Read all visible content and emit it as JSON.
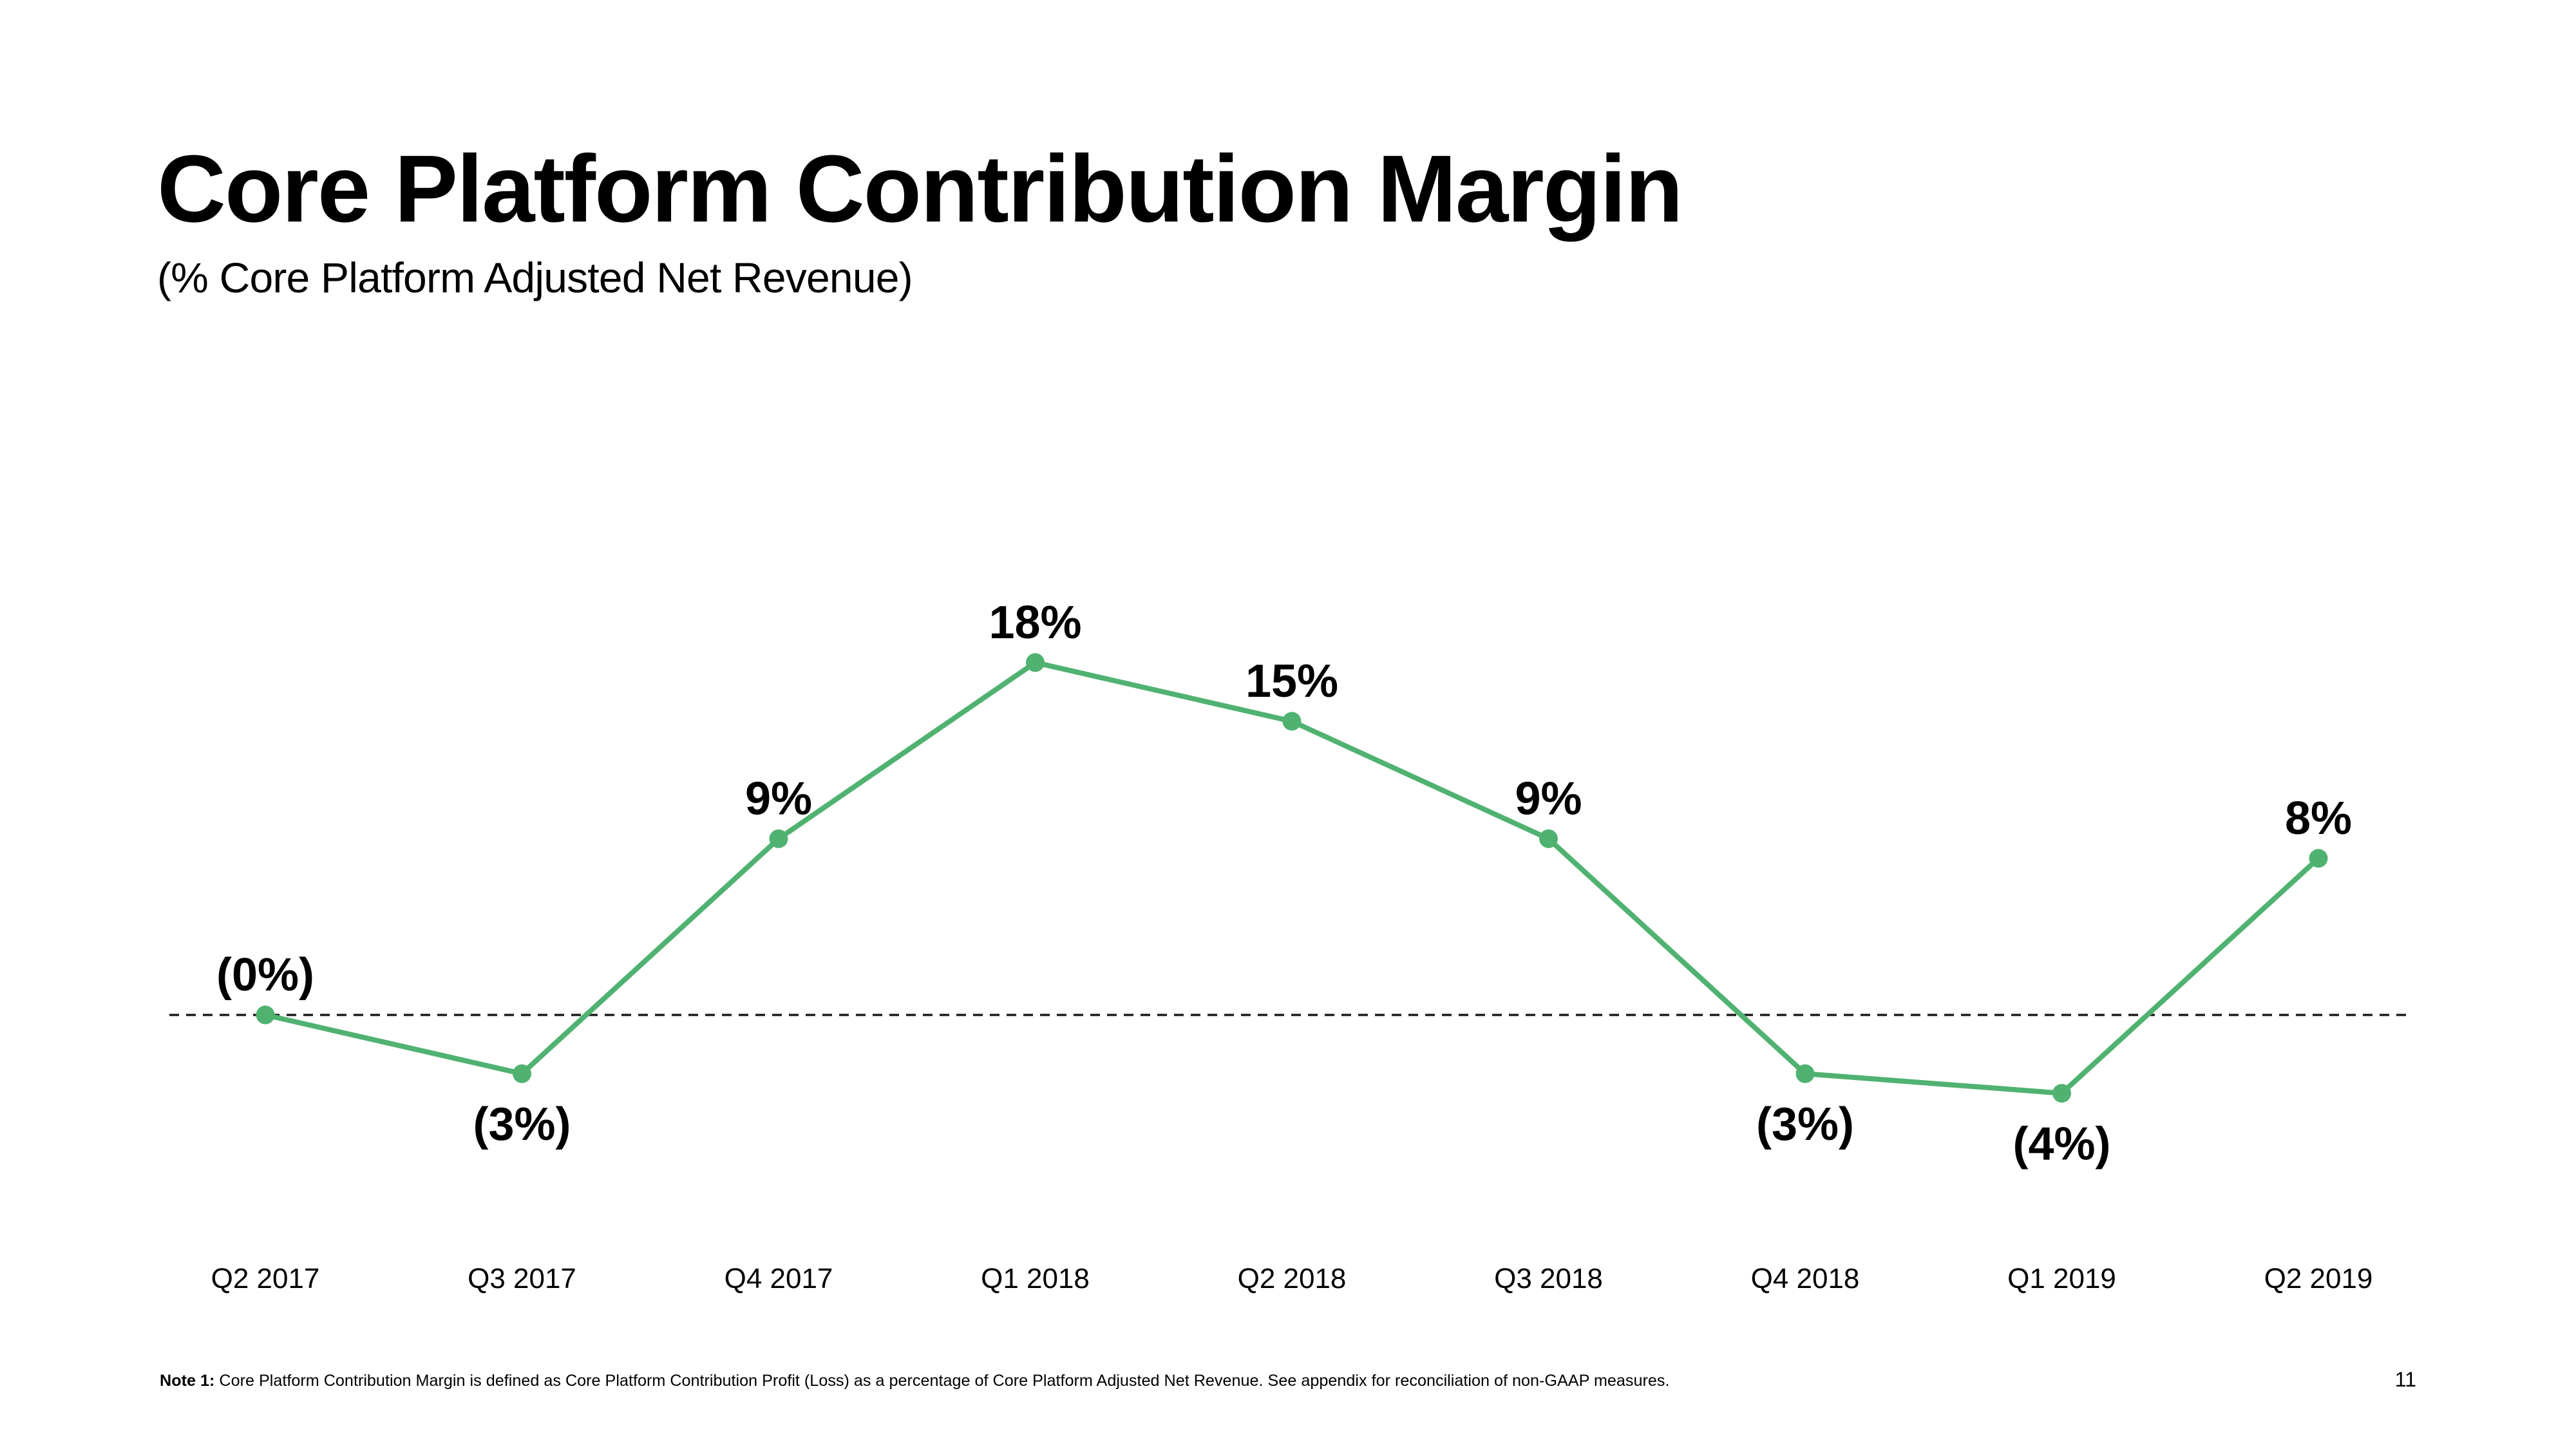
{
  "slide": {
    "title": "Core Platform Contribution Margin",
    "subtitle": "(% Core Platform Adjusted Net Revenue)",
    "footnote": {
      "label": "Note 1:",
      "text": " Core Platform Contribution Margin is defined as Core Platform Contribution Profit (Loss) as a percentage of Core Platform Adjusted Net Revenue. See appendix for reconciliation of non-GAAP measures."
    },
    "page_number": "11"
  },
  "colors": {
    "line": "#50b271",
    "marker": "#50b271",
    "zero_line": "#1c1c1c",
    "label": "#000000",
    "background": "#ffffff"
  },
  "chart_data": {
    "type": "line",
    "title": "Core Platform Contribution Margin",
    "subtitle": "(% Core Platform Adjusted Net Revenue)",
    "categories": [
      "Q2 2017",
      "Q3 2017",
      "Q4 2017",
      "Q1 2018",
      "Q2 2018",
      "Q3 2018",
      "Q4 2018",
      "Q1 2019",
      "Q2 2019"
    ],
    "values": [
      0,
      -3,
      9,
      18,
      15,
      9,
      -3,
      -4,
      8
    ],
    "point_labels": [
      "(0%)",
      "(3%)",
      "9%",
      "18%",
      "15%",
      "9%",
      "(3%)",
      "(4%)",
      "8%"
    ],
    "label_positions": [
      "above",
      "below",
      "above",
      "above",
      "above",
      "above",
      "below",
      "below",
      "above"
    ],
    "xlabel": "",
    "ylabel": "",
    "ylim": [
      -8,
      22
    ],
    "grid": false,
    "zero_line_dashed": true,
    "legend_position": "none"
  }
}
